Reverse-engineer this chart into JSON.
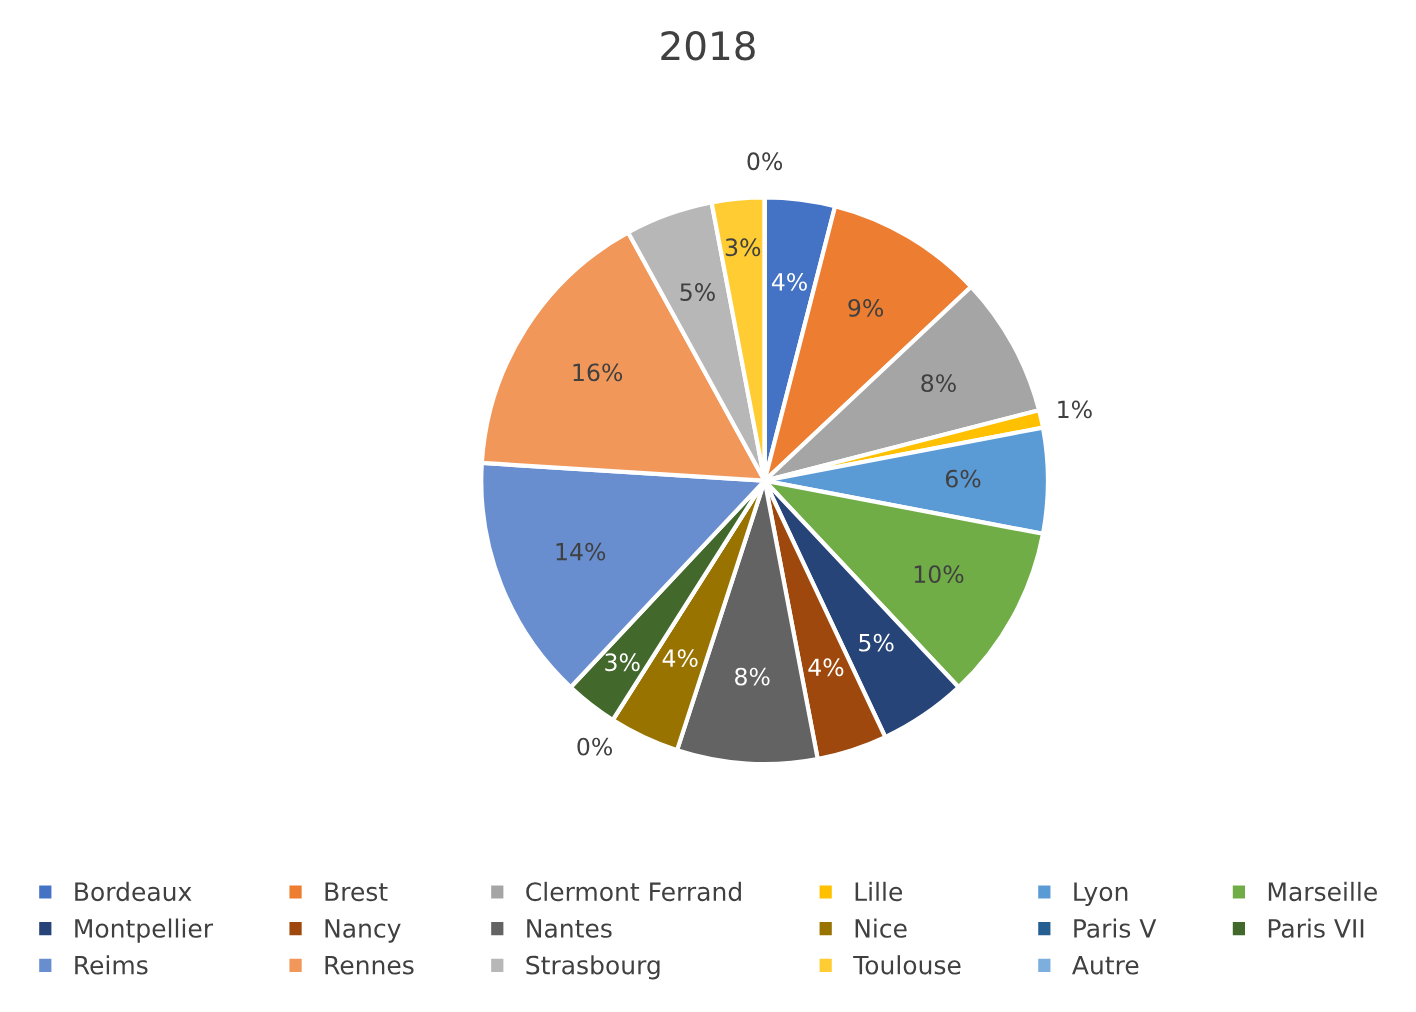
{
  "chart_data": {
    "type": "pie",
    "title": "2018",
    "categories": [
      "Bordeaux",
      "Brest",
      "Clermont Ferrand",
      "Lille",
      "Lyon",
      "Marseille",
      "Montpellier",
      "Nancy",
      "Nantes",
      "Nice",
      "Paris V",
      "Paris VII",
      "Reims",
      "Rennes",
      "Strasbourg",
      "Toulouse",
      "Autre"
    ],
    "values": [
      4,
      9,
      8,
      1,
      6,
      10,
      5,
      4,
      8,
      4,
      0,
      3,
      14,
      16,
      5,
      3,
      0
    ],
    "colors": [
      "#4472c4",
      "#ed7d31",
      "#a5a5a5",
      "#ffc000",
      "#5b9bd5",
      "#70ad47",
      "#264478",
      "#9e480e",
      "#636363",
      "#997300",
      "#255e91",
      "#43682b",
      "#698ed0",
      "#f1975a",
      "#b7b7b7",
      "#ffcd33",
      "#7cafdd"
    ],
    "value_labels": [
      "4%",
      "9%",
      "8%",
      "1%",
      "6%",
      "10%",
      "5%",
      "4%",
      "8%",
      "4%",
      "0%",
      "3%",
      "14%",
      "16%",
      "5%",
      "3%",
      "0%"
    ],
    "legend": "bottom"
  }
}
